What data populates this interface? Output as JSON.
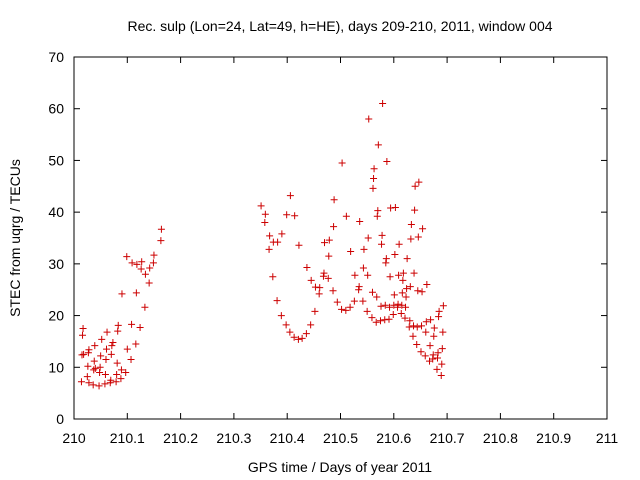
{
  "chart_data": {
    "type": "scatter",
    "title": "Rec. sulp (Lon=24, Lat=49, h=HE), days 209-210, 2011, window 004",
    "xlabel": "GPS time / Days of year 2011",
    "ylabel": "STEC from uqrg / TECUs",
    "xlim": [
      210,
      211
    ],
    "ylim": [
      0,
      70
    ],
    "x_ticks": [
      210,
      210.1,
      210.2,
      210.3,
      210.4,
      210.5,
      210.6,
      210.7,
      210.8,
      210.9,
      211
    ],
    "x_tick_labels": [
      "210",
      "210.1",
      "210.2",
      "210.3",
      "210.4",
      "210.5",
      "210.6",
      "210.7",
      "210.8",
      "210.9",
      "211"
    ],
    "y_ticks": [
      0,
      10,
      20,
      30,
      40,
      50,
      60,
      70
    ],
    "y_tick_labels": [
      "0",
      "10",
      "20",
      "30",
      "40",
      "50",
      "60",
      "70"
    ],
    "grid": false,
    "marker": "+",
    "color": "#cc0000",
    "series": [
      {
        "name": "STEC",
        "points": [
          [
            210.014,
            7.2
          ],
          [
            210.015,
            12.4
          ],
          [
            210.016,
            16.2
          ],
          [
            210.017,
            17.5
          ],
          [
            210.018,
            12.5
          ],
          [
            210.025,
            8.2
          ],
          [
            210.026,
            10.2
          ],
          [
            210.027,
            12.8
          ],
          [
            210.028,
            13.4
          ],
          [
            210.028,
            7.0
          ],
          [
            210.036,
            6.6
          ],
          [
            210.037,
            9.5
          ],
          [
            210.038,
            11.2
          ],
          [
            210.039,
            14.2
          ],
          [
            210.04,
            9.8
          ],
          [
            210.047,
            6.4
          ],
          [
            210.048,
            9.0
          ],
          [
            210.049,
            10.0
          ],
          [
            210.05,
            12.2
          ],
          [
            210.052,
            15.4
          ],
          [
            210.058,
            6.8
          ],
          [
            210.059,
            8.6
          ],
          [
            210.06,
            11.5
          ],
          [
            210.061,
            13.5
          ],
          [
            210.062,
            16.8
          ],
          [
            210.068,
            7.0
          ],
          [
            210.069,
            7.5
          ],
          [
            210.07,
            12.5
          ],
          [
            210.071,
            14.2
          ],
          [
            210.073,
            14.8
          ],
          [
            210.079,
            7.2
          ],
          [
            210.08,
            8.6
          ],
          [
            210.081,
            10.8
          ],
          [
            210.082,
            17.0
          ],
          [
            210.083,
            18.1
          ],
          [
            210.088,
            7.8
          ],
          [
            210.089,
            9.5
          ],
          [
            210.09,
            24.2
          ],
          [
            210.097,
            9.0
          ],
          [
            210.099,
            31.4
          ],
          [
            210.1,
            13.5
          ],
          [
            210.107,
            11.5
          ],
          [
            210.108,
            18.3
          ],
          [
            210.109,
            30.2
          ],
          [
            210.116,
            14.5
          ],
          [
            210.117,
            24.4
          ],
          [
            210.118,
            29.9
          ],
          [
            210.124,
            17.7
          ],
          [
            210.126,
            29.0
          ],
          [
            210.127,
            30.4
          ],
          [
            210.133,
            21.6
          ],
          [
            210.134,
            28.0
          ],
          [
            210.141,
            26.3
          ],
          [
            210.142,
            29.2
          ],
          [
            210.149,
            30.2
          ],
          [
            210.15,
            31.7
          ],
          [
            210.163,
            34.5
          ],
          [
            210.164,
            36.7
          ],
          [
            210.351,
            41.2
          ],
          [
            210.358,
            38.0
          ],
          [
            210.359,
            39.6
          ],
          [
            210.366,
            32.8
          ],
          [
            210.367,
            35.4
          ],
          [
            210.373,
            27.5
          ],
          [
            210.374,
            34.2
          ],
          [
            210.381,
            22.9
          ],
          [
            210.382,
            34.2
          ],
          [
            210.389,
            20.0
          ],
          [
            210.39,
            35.8
          ],
          [
            210.398,
            18.2
          ],
          [
            210.399,
            39.5
          ],
          [
            210.405,
            16.8
          ],
          [
            210.406,
            43.2
          ],
          [
            210.413,
            15.8
          ],
          [
            210.414,
            39.3
          ],
          [
            210.421,
            15.4
          ],
          [
            210.422,
            33.6
          ],
          [
            210.428,
            15.6
          ],
          [
            210.436,
            16.5
          ],
          [
            210.437,
            29.3
          ],
          [
            210.444,
            18.2
          ],
          [
            210.445,
            26.8
          ],
          [
            210.452,
            20.8
          ],
          [
            210.453,
            25.5
          ],
          [
            210.46,
            24.2
          ],
          [
            210.461,
            25.4
          ],
          [
            210.468,
            27.6
          ],
          [
            210.469,
            28.2
          ],
          [
            210.47,
            34.1
          ],
          [
            210.477,
            27.2
          ],
          [
            210.478,
            31.5
          ],
          [
            210.479,
            34.6
          ],
          [
            210.486,
            24.8
          ],
          [
            210.487,
            37.2
          ],
          [
            210.488,
            42.4
          ],
          [
            210.494,
            22.6
          ],
          [
            210.502,
            21.2
          ],
          [
            210.503,
            49.5
          ],
          [
            210.51,
            21.0
          ],
          [
            210.511,
            39.2
          ],
          [
            210.518,
            21.6
          ],
          [
            210.519,
            32.4
          ],
          [
            210.526,
            22.8
          ],
          [
            210.527,
            27.8
          ],
          [
            210.534,
            25.0
          ],
          [
            210.535,
            25.6
          ],
          [
            210.536,
            38.2
          ],
          [
            210.542,
            22.8
          ],
          [
            210.543,
            29.2
          ],
          [
            210.544,
            32.8
          ],
          [
            210.55,
            20.8
          ],
          [
            210.551,
            27.8
          ],
          [
            210.552,
            35.0
          ],
          [
            210.553,
            58.0
          ],
          [
            210.559,
            19.6
          ],
          [
            210.56,
            24.5
          ],
          [
            210.561,
            44.6
          ],
          [
            210.562,
            46.5
          ],
          [
            210.563,
            48.4
          ],
          [
            210.567,
            18.7
          ],
          [
            210.568,
            23.6
          ],
          [
            210.569,
            39.2
          ],
          [
            210.57,
            40.3
          ],
          [
            210.571,
            53.0
          ],
          [
            210.575,
            19.0
          ],
          [
            210.576,
            21.8
          ],
          [
            210.577,
            33.8
          ],
          [
            210.578,
            35.5
          ],
          [
            210.579,
            61.0
          ],
          [
            210.583,
            19.2
          ],
          [
            210.584,
            22.0
          ],
          [
            210.585,
            30.2
          ],
          [
            210.586,
            31.0
          ],
          [
            210.587,
            49.8
          ],
          [
            210.591,
            19.3
          ],
          [
            210.592,
            21.6
          ],
          [
            210.593,
            27.5
          ],
          [
            210.594,
            40.8
          ],
          [
            210.599,
            20.2
          ],
          [
            210.6,
            22.0
          ],
          [
            210.601,
            24.0
          ],
          [
            210.602,
            31.8
          ],
          [
            210.603,
            40.9
          ],
          [
            210.607,
            21.6
          ],
          [
            210.608,
            22.2
          ],
          [
            210.609,
            27.8
          ],
          [
            210.61,
            33.8
          ],
          [
            210.614,
            20.4
          ],
          [
            210.615,
            22.0
          ],
          [
            210.616,
            24.4
          ],
          [
            210.617,
            26.8
          ],
          [
            210.618,
            28.2
          ],
          [
            210.621,
            19.5
          ],
          [
            210.622,
            21.6
          ],
          [
            210.623,
            23.6
          ],
          [
            210.624,
            25.2
          ],
          [
            210.625,
            31.0
          ],
          [
            210.629,
            17.8
          ],
          [
            210.63,
            19.0
          ],
          [
            210.631,
            25.6
          ],
          [
            210.632,
            34.8
          ],
          [
            210.633,
            37.6
          ],
          [
            210.636,
            16.0
          ],
          [
            210.637,
            18.0
          ],
          [
            210.638,
            28.2
          ],
          [
            210.639,
            40.4
          ],
          [
            210.64,
            45.0
          ],
          [
            210.643,
            14.4
          ],
          [
            210.644,
            17.8
          ],
          [
            210.645,
            24.8
          ],
          [
            210.646,
            35.2
          ],
          [
            210.647,
            45.8
          ],
          [
            210.651,
            13.0
          ],
          [
            210.652,
            18.0
          ],
          [
            210.653,
            24.6
          ],
          [
            210.654,
            36.8
          ],
          [
            210.659,
            12.2
          ],
          [
            210.66,
            16.8
          ],
          [
            210.661,
            18.8
          ],
          [
            210.662,
            26.0
          ],
          [
            210.667,
            11.2
          ],
          [
            210.668,
            14.2
          ],
          [
            210.669,
            19.2
          ],
          [
            210.673,
            11.6
          ],
          [
            210.674,
            12.4
          ],
          [
            210.675,
            16.0
          ],
          [
            210.676,
            17.6
          ],
          [
            210.681,
            9.6
          ],
          [
            210.682,
            11.8
          ],
          [
            210.683,
            12.8
          ],
          [
            210.684,
            19.8
          ],
          [
            210.685,
            20.8
          ],
          [
            210.689,
            8.4
          ],
          [
            210.69,
            10.6
          ],
          [
            210.691,
            13.6
          ],
          [
            210.692,
            16.8
          ],
          [
            210.693,
            21.9
          ]
        ]
      }
    ]
  }
}
